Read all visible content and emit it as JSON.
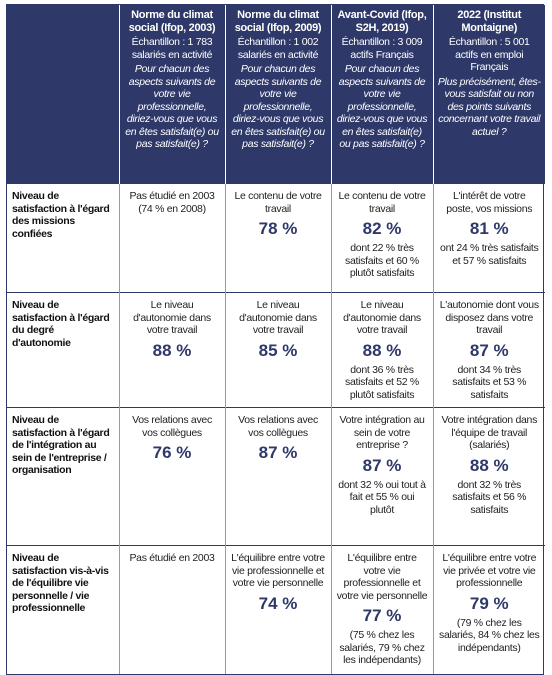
{
  "table": {
    "columns": [
      {
        "title": "Norme du climat social (Ifop, 2003)",
        "sample": "Échantillon : 1 783 salariés en activité",
        "question": "Pour chacun des aspects suivants de votre vie professionnelle, diriez-vous que vous en êtes satisfait(e) ou pas satisfait(e) ?"
      },
      {
        "title": "Norme du climat social (Ifop, 2009)",
        "sample": "Échantillon : 1 002 salariés en activité",
        "question": "Pour chacun des aspects suivants de votre vie professionnelle, diriez-vous que vous en êtes satisfait(e) ou pas satisfait(e) ?"
      },
      {
        "title": "Avant-Covid (Ifop, S2H, 2019)",
        "sample": "Échantillon : 3 009 actifs Français",
        "question": "Pour chacun des aspects suivants de votre vie professionnelle, diriez-vous que vous en êtes satisfait(e) ou pas satisfait(e) ?"
      },
      {
        "title": "2022 (Institut Montaigne)",
        "sample": "Échantillon : 5 001 actifs en emploi Français",
        "question": "Plus précisément, êtes-vous satisfait ou non des points suivants concernant votre travail actuel ?"
      }
    ],
    "rows": [
      {
        "label": "Niveau de satisfaction à l'égard des missions confiées",
        "cells": [
          {
            "text": "Pas étudié en 2003",
            "note": "(74 % en 2008)"
          },
          {
            "text": "Le contenu de votre travail",
            "value": "78 %"
          },
          {
            "text": "Le contenu de votre travail",
            "value": "82 %",
            "note": "dont 22 % très satisfaits et 60 % plutôt satisfaits"
          },
          {
            "text": "L'intérêt de votre poste, vos missions",
            "value": "81 %",
            "note": "ont 24 % très satisfaits et 57 % satisfaits"
          }
        ]
      },
      {
        "label": "Niveau de satisfaction à l'égard du degré d'autonomie",
        "cells": [
          {
            "text": "Le niveau d'autonomie dans votre travail",
            "value": "88 %"
          },
          {
            "text": "Le niveau d'autonomie dans votre travail",
            "value": "85 %"
          },
          {
            "text": "Le niveau d'autonomie dans votre travail",
            "value": "88 %",
            "note": "dont 36 % très satisfaits et 52 % plutôt satisfaits"
          },
          {
            "text": "L'autonomie dont vous disposez dans votre travail",
            "value": "87 %",
            "note": "dont 34 % très satisfaits et 53 % satisfaits"
          }
        ]
      },
      {
        "label": "Niveau de satisfaction à l'égard de l'intégration au sein de l'entreprise / organisation",
        "cells": [
          {
            "text": "Vos relations avec vos collègues",
            "value": "76 %"
          },
          {
            "text": "Vos relations avec vos collègues",
            "value": "87 %"
          },
          {
            "text": "Votre intégration au sein de votre entreprise ?",
            "value": "87 %",
            "note": "dont 32 % oui tout à fait et 55 % oui plutôt"
          },
          {
            "text": "Votre intégration dans l'équipe de travail (salariés)",
            "value": "88 %",
            "note": "dont 32 % très satisfaits et 56 % satisfaits"
          }
        ]
      },
      {
        "label": "Niveau de satisfaction vis-à-vis de l'équilibre vie personnelle / vie professionnelle",
        "cells": [
          {
            "text": "Pas étudié en 2003"
          },
          {
            "text": "L'équilibre entre votre vie professionnelle et votre vie personnelle",
            "value": "74 %"
          },
          {
            "text": "L'équilibre entre votre vie professionnelle et votre vie personnelle",
            "value": "77 %",
            "note": "(75 % chez les salariés, 79 % chez les indépendants)"
          },
          {
            "text": "L'équilibre entre votre vie privée et votre vie professionnelle",
            "value": "79 %",
            "note": "(79 % chez les salariés, 84 % chez les indépendants)"
          }
        ]
      }
    ]
  }
}
